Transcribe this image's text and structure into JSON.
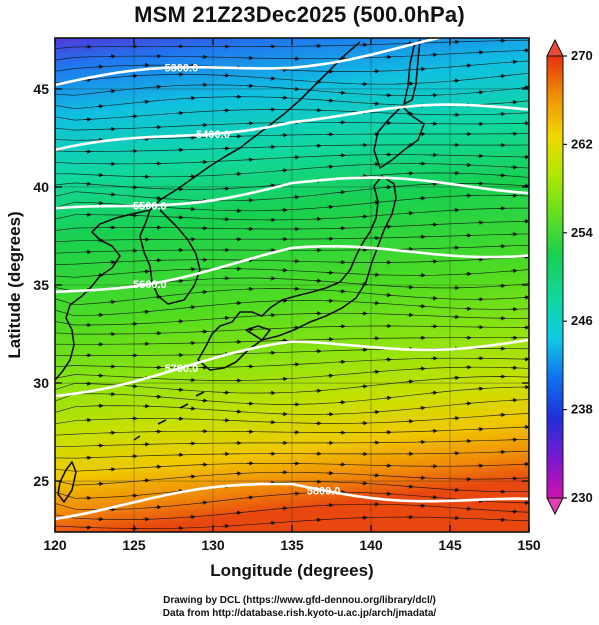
{
  "title": "MSM 21Z23Dec2025 (500.0hPa)",
  "credits": {
    "line1": "Drawing by DCL (https://www.gfd-dennou.org/library/dcl/)",
    "line2": "Data from http://database.rish.kyoto-u.ac.jp/arch/jmadata/"
  },
  "chart_data": {
    "type": "heatmap",
    "title": "MSM 21Z23Dec2025 (500.0hPa)",
    "xlabel": "Longitude (degrees)",
    "ylabel": "Latitude  (degrees)",
    "xlim": [
      120,
      150
    ],
    "ylim": [
      22.4,
      47.6
    ],
    "xticks": [
      "120",
      "125",
      "130",
      "135",
      "140",
      "145",
      "150"
    ],
    "yticks": [
      "25",
      "30",
      "35",
      "40",
      "45"
    ],
    "grid": true,
    "colorbar": {
      "min": 230,
      "max": 270,
      "ticks": [
        "270",
        "262",
        "254",
        "246",
        "238",
        "230"
      ],
      "colors": [
        "#d010b0",
        "#7a18d0",
        "#2030d8",
        "#1070f0",
        "#10c8e8",
        "#10d8a0",
        "#18d050",
        "#60e020",
        "#b0e800",
        "#f0d800",
        "#f09000",
        "#e83010"
      ]
    },
    "contours": [
      {
        "label": "5300.0",
        "value": 5300,
        "lat_at_120": 45.2,
        "lat_at_135": 46.4,
        "lat_at_150": 48.0
      },
      {
        "label": "5400.0",
        "value": 5400,
        "lat_at_120": 41.6,
        "lat_at_135": 43.6,
        "lat_at_150": 44.0
      },
      {
        "label": "5500.0",
        "value": 5500,
        "lat_at_120": 38.6,
        "lat_at_135": 40.2,
        "lat_at_150": 40.0
      },
      {
        "label": "5600.0",
        "value": 5600,
        "lat_at_120": 34.6,
        "lat_at_135": 36.6,
        "lat_at_150": 36.8
      },
      {
        "label": "5700.0",
        "value": 5700,
        "lat_at_120": 29.6,
        "lat_at_135": 31.8,
        "lat_at_150": 32.2
      },
      {
        "label": "5800.0",
        "value": 5800,
        "lat_at_120": 23.4,
        "lat_at_135": 24.8,
        "lat_at_150": 23.8
      }
    ],
    "wind": "westerly streamlines with arrows"
  }
}
